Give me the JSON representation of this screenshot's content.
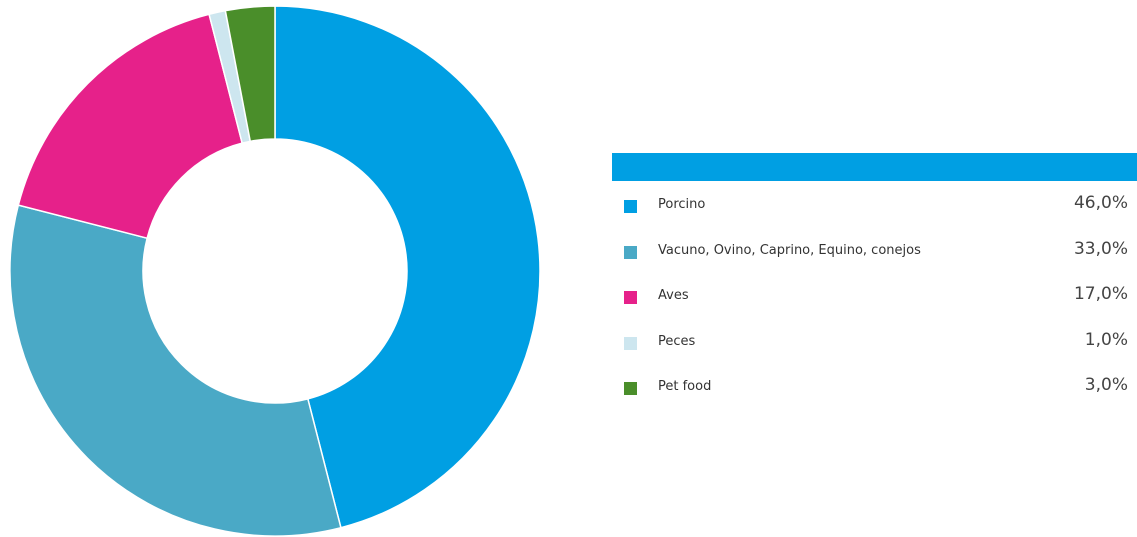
{
  "chart_data": {
    "type": "pie",
    "categories": [
      "Porcino",
      "Vacuno, Ovino, Caprino, Equino, conejos",
      "Aves",
      "Peces",
      "Pet food"
    ],
    "values": [
      46.0,
      33.0,
      17.0,
      1.0,
      3.0
    ],
    "value_labels": [
      "46,0%",
      "33,0%",
      "17,0%",
      "1,0%",
      "3,0%"
    ],
    "colors": [
      "#009fe3",
      "#4aa9c6",
      "#e6218a",
      "#cde6ef",
      "#4a8e2a"
    ],
    "style": "donut",
    "start": "top, clockwise",
    "legend_position": "right",
    "legend_header_color": "#009fe3"
  }
}
